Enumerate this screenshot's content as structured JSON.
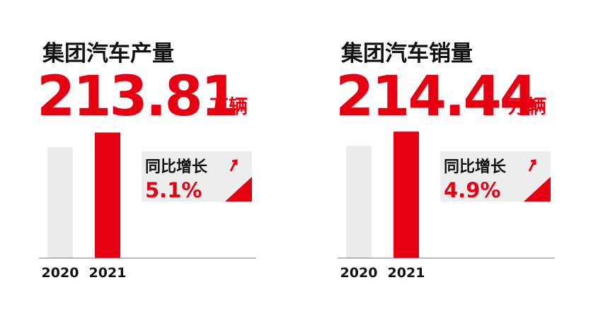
{
  "chart_data": [
    {
      "type": "bar",
      "title": "集团汽车产量",
      "unit": "万辆",
      "categories": [
        "2020",
        "2021"
      ],
      "values": [
        203.43,
        213.81
      ],
      "colors": [
        "#ebebeb",
        "#e60012"
      ],
      "ylim": [
        125,
        215
      ],
      "annotation": "同比增长",
      "growth": 5.1,
      "growth_label": "5.1%"
    },
    {
      "type": "bar",
      "title": "集团汽车销量",
      "unit": "万辆",
      "categories": [
        "2020",
        "2021"
      ],
      "values": [
        204.43,
        214.44
      ],
      "colors": [
        "#ebebeb",
        "#e60012"
      ],
      "ylim": [
        125,
        215
      ],
      "annotation": "同比增长",
      "growth": 4.9,
      "growth_label": "4.9%"
    }
  ]
}
